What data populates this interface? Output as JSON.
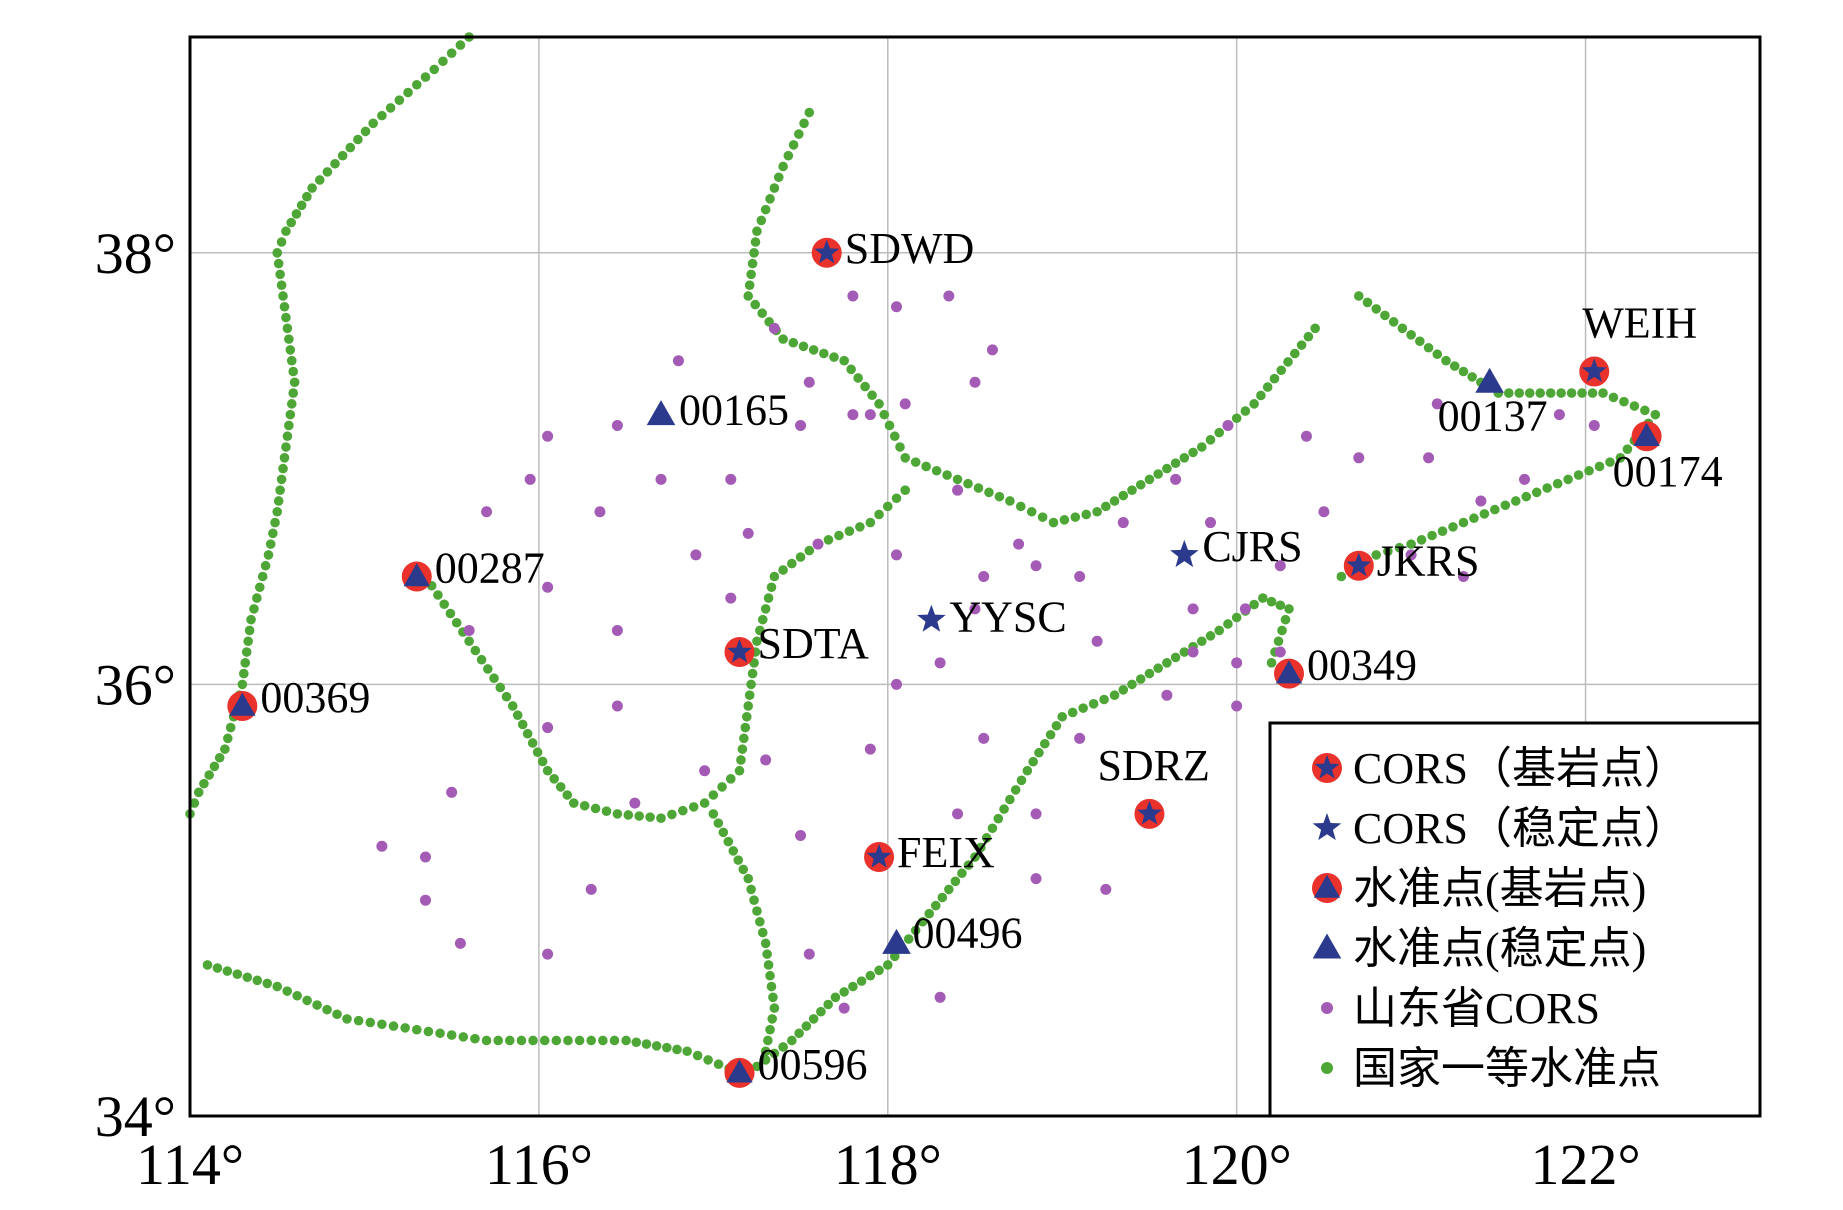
{
  "map": {
    "axes": {
      "x_ticks": [
        {
          "label": "114°",
          "lon": 114
        },
        {
          "label": "116°",
          "lon": 116
        },
        {
          "label": "118°",
          "lon": 118
        },
        {
          "label": "120°",
          "lon": 120
        },
        {
          "label": "122°",
          "lon": 122
        }
      ],
      "y_ticks": [
        {
          "label": "38°",
          "lat": 38
        },
        {
          "label": "36°",
          "lat": 36
        },
        {
          "label": "34°",
          "lat": 34
        }
      ],
      "lon_range": [
        114,
        123
      ],
      "lat_range": [
        34,
        39
      ],
      "grid": true
    },
    "stations": [
      {
        "name": "SDWD",
        "type": "cors-bedrock",
        "lon": 117.65,
        "lat": 38.0
      },
      {
        "name": "WEIH",
        "type": "cors-bedrock",
        "lon": 122.05,
        "lat": 37.45
      },
      {
        "name": "00137",
        "type": "level-stable",
        "lon": 121.45,
        "lat": 37.4
      },
      {
        "name": "00174",
        "type": "level-bedrock",
        "lon": 122.35,
        "lat": 37.15
      },
      {
        "name": "00165",
        "type": "level-stable",
        "lon": 116.7,
        "lat": 37.25
      },
      {
        "name": "CJRS",
        "type": "cors-stable",
        "lon": 119.7,
        "lat": 36.6
      },
      {
        "name": "JKRS",
        "type": "cors-bedrock",
        "lon": 120.7,
        "lat": 36.55
      },
      {
        "name": "00287",
        "type": "level-bedrock",
        "lon": 115.3,
        "lat": 36.5
      },
      {
        "name": "YYSC",
        "type": "cors-stable",
        "lon": 118.25,
        "lat": 36.3
      },
      {
        "name": "SDTA",
        "type": "cors-bedrock",
        "lon": 117.15,
        "lat": 36.15
      },
      {
        "name": "00349",
        "type": "level-bedrock",
        "lon": 120.3,
        "lat": 36.05
      },
      {
        "name": "00369",
        "type": "level-bedrock",
        "lon": 114.3,
        "lat": 35.9
      },
      {
        "name": "SDRZ",
        "type": "cors-bedrock",
        "lon": 119.5,
        "lat": 35.4
      },
      {
        "name": "FEIX",
        "type": "cors-bedrock",
        "lon": 117.95,
        "lat": 35.2
      },
      {
        "name": "00496",
        "type": "level-stable",
        "lon": 118.05,
        "lat": 34.8
      },
      {
        "name": "00596",
        "type": "level-bedrock",
        "lon": 117.15,
        "lat": 34.2
      }
    ],
    "leveling_routes": [
      [
        [
          115.6,
          39.0
        ],
        [
          115.4,
          38.85
        ],
        [
          115.05,
          38.6
        ],
        [
          114.7,
          38.3
        ],
        [
          114.55,
          38.1
        ],
        [
          114.5,
          38.0
        ],
        [
          114.55,
          37.7
        ],
        [
          114.6,
          37.4
        ],
        [
          114.55,
          37.1
        ],
        [
          114.5,
          36.8
        ],
        [
          114.45,
          36.6
        ],
        [
          114.35,
          36.3
        ],
        [
          114.3,
          36.0
        ],
        [
          114.2,
          35.7
        ],
        [
          114.05,
          35.5
        ],
        [
          114.0,
          35.4
        ]
      ],
      [
        [
          115.35,
          36.5
        ],
        [
          115.6,
          36.2
        ],
        [
          115.85,
          35.9
        ],
        [
          116.05,
          35.6
        ],
        [
          116.2,
          35.45
        ],
        [
          116.45,
          35.4
        ],
        [
          116.7,
          35.38
        ],
        [
          116.95,
          35.45
        ],
        [
          117.15,
          35.6
        ],
        [
          117.2,
          35.9
        ],
        [
          117.25,
          36.2
        ],
        [
          117.35,
          36.5
        ],
        [
          117.6,
          36.65
        ],
        [
          117.9,
          36.75
        ],
        [
          118.1,
          36.9
        ]
      ],
      [
        [
          117.55,
          38.65
        ],
        [
          117.4,
          38.4
        ],
        [
          117.25,
          38.1
        ],
        [
          117.2,
          37.8
        ],
        [
          117.4,
          37.6
        ],
        [
          117.75,
          37.5
        ],
        [
          117.95,
          37.3
        ],
        [
          118.1,
          37.05
        ],
        [
          118.4,
          36.95
        ],
        [
          118.7,
          36.85
        ],
        [
          118.95,
          36.75
        ],
        [
          119.2,
          36.8
        ],
        [
          119.5,
          36.95
        ],
        [
          119.8,
          37.1
        ],
        [
          120.1,
          37.3
        ],
        [
          120.45,
          37.65
        ]
      ],
      [
        [
          120.7,
          37.8
        ],
        [
          120.95,
          37.65
        ],
        [
          121.2,
          37.5
        ],
        [
          121.5,
          37.35
        ],
        [
          121.8,
          37.35
        ],
        [
          122.1,
          37.35
        ],
        [
          122.4,
          37.25
        ],
        [
          122.2,
          37.05
        ],
        [
          121.9,
          36.95
        ],
        [
          121.6,
          36.85
        ],
        [
          121.3,
          36.75
        ],
        [
          121.0,
          36.65
        ],
        [
          120.8,
          36.6
        ],
        [
          120.6,
          36.5
        ]
      ],
      [
        [
          120.2,
          36.1
        ],
        [
          120.3,
          36.35
        ],
        [
          120.15,
          36.4
        ],
        [
          119.9,
          36.25
        ],
        [
          119.6,
          36.1
        ],
        [
          119.3,
          35.95
        ],
        [
          119.0,
          35.85
        ],
        [
          118.8,
          35.6
        ],
        [
          118.5,
          35.2
        ],
        [
          118.2,
          34.9
        ],
        [
          118.0,
          34.7
        ],
        [
          117.7,
          34.55
        ],
        [
          117.45,
          34.35
        ],
        [
          117.2,
          34.2
        ]
      ],
      [
        [
          114.1,
          34.7
        ],
        [
          114.5,
          34.6
        ],
        [
          114.9,
          34.45
        ],
        [
          115.3,
          34.4
        ],
        [
          115.7,
          34.35
        ],
        [
          116.1,
          34.35
        ],
        [
          116.5,
          34.35
        ],
        [
          116.85,
          34.3
        ],
        [
          117.15,
          34.2
        ]
      ],
      [
        [
          117.0,
          35.4
        ],
        [
          117.2,
          35.1
        ],
        [
          117.3,
          34.8
        ],
        [
          117.35,
          34.5
        ],
        [
          117.3,
          34.3
        ]
      ]
    ],
    "cors_points": [
      [
        117.35,
        37.65
      ],
      [
        117.8,
        37.8
      ],
      [
        118.05,
        37.75
      ],
      [
        118.35,
        37.8
      ],
      [
        118.6,
        37.55
      ],
      [
        118.5,
        37.4
      ],
      [
        117.9,
        37.25
      ],
      [
        117.55,
        37.4
      ],
      [
        116.8,
        37.5
      ],
      [
        116.45,
        37.2
      ],
      [
        116.05,
        37.15
      ],
      [
        116.7,
        36.95
      ],
      [
        117.1,
        36.95
      ],
      [
        117.5,
        37.2
      ],
      [
        117.8,
        37.25
      ],
      [
        118.1,
        37.3
      ],
      [
        118.4,
        36.9
      ],
      [
        118.75,
        36.65
      ],
      [
        118.55,
        36.5
      ],
      [
        118.05,
        36.6
      ],
      [
        117.6,
        36.65
      ],
      [
        117.2,
        36.7
      ],
      [
        117.1,
        36.4
      ],
      [
        116.9,
        36.6
      ],
      [
        116.35,
        36.8
      ],
      [
        115.95,
        36.95
      ],
      [
        115.7,
        36.8
      ],
      [
        116.05,
        36.45
      ],
      [
        116.45,
        36.25
      ],
      [
        116.45,
        35.9
      ],
      [
        116.05,
        35.8
      ],
      [
        115.6,
        36.25
      ],
      [
        115.5,
        35.5
      ],
      [
        115.35,
        35.2
      ],
      [
        115.1,
        35.25
      ],
      [
        115.35,
        35.0
      ],
      [
        115.55,
        34.8
      ],
      [
        116.05,
        34.75
      ],
      [
        116.3,
        35.05
      ],
      [
        116.55,
        35.45
      ],
      [
        116.95,
        35.6
      ],
      [
        117.3,
        35.65
      ],
      [
        117.5,
        35.3
      ],
      [
        117.9,
        35.7
      ],
      [
        118.05,
        36.0
      ],
      [
        118.3,
        36.1
      ],
      [
        118.5,
        36.35
      ],
      [
        118.85,
        36.55
      ],
      [
        119.1,
        36.5
      ],
      [
        119.2,
        36.2
      ],
      [
        119.1,
        35.75
      ],
      [
        118.55,
        35.75
      ],
      [
        118.4,
        35.4
      ],
      [
        118.85,
        35.4
      ],
      [
        118.85,
        35.1
      ],
      [
        119.25,
        35.05
      ],
      [
        118.3,
        34.55
      ],
      [
        117.55,
        34.75
      ],
      [
        117.75,
        34.5
      ],
      [
        119.35,
        36.75
      ],
      [
        119.65,
        36.95
      ],
      [
        119.85,
        36.75
      ],
      [
        119.95,
        37.2
      ],
      [
        120.4,
        37.15
      ],
      [
        120.7,
        37.05
      ],
      [
        121.15,
        37.3
      ],
      [
        121.1,
        37.05
      ],
      [
        121.65,
        36.95
      ],
      [
        121.4,
        36.85
      ],
      [
        120.5,
        36.8
      ],
      [
        120.25,
        36.55
      ],
      [
        120.05,
        36.35
      ],
      [
        119.75,
        36.35
      ],
      [
        120.25,
        36.15
      ],
      [
        120.0,
        36.1
      ],
      [
        119.75,
        36.15
      ],
      [
        120.0,
        35.9
      ],
      [
        119.6,
        35.95
      ],
      [
        121.0,
        36.6
      ],
      [
        121.3,
        36.5
      ],
      [
        122.05,
        37.2
      ],
      [
        121.85,
        37.25
      ]
    ]
  },
  "legend": {
    "items": [
      {
        "type": "cors-bedrock",
        "label": "CORS（基岩点）"
      },
      {
        "type": "cors-stable",
        "label": "CORS（稳定点）"
      },
      {
        "type": "level-bedrock",
        "label": "水准点(基岩点)"
      },
      {
        "type": "level-stable",
        "label": "水准点(稳定点)"
      },
      {
        "type": "sd-cors",
        "label": "山东省CORS"
      },
      {
        "type": "national-level",
        "label": "国家一等水准点"
      }
    ]
  },
  "colors": {
    "red_circle": "#e8322b",
    "navy_marker": "#2b3a8c",
    "purple_dot": "#a35bb5",
    "green_dot": "#4ea636",
    "grid": "#bdbdbd",
    "frame": "#000000"
  }
}
